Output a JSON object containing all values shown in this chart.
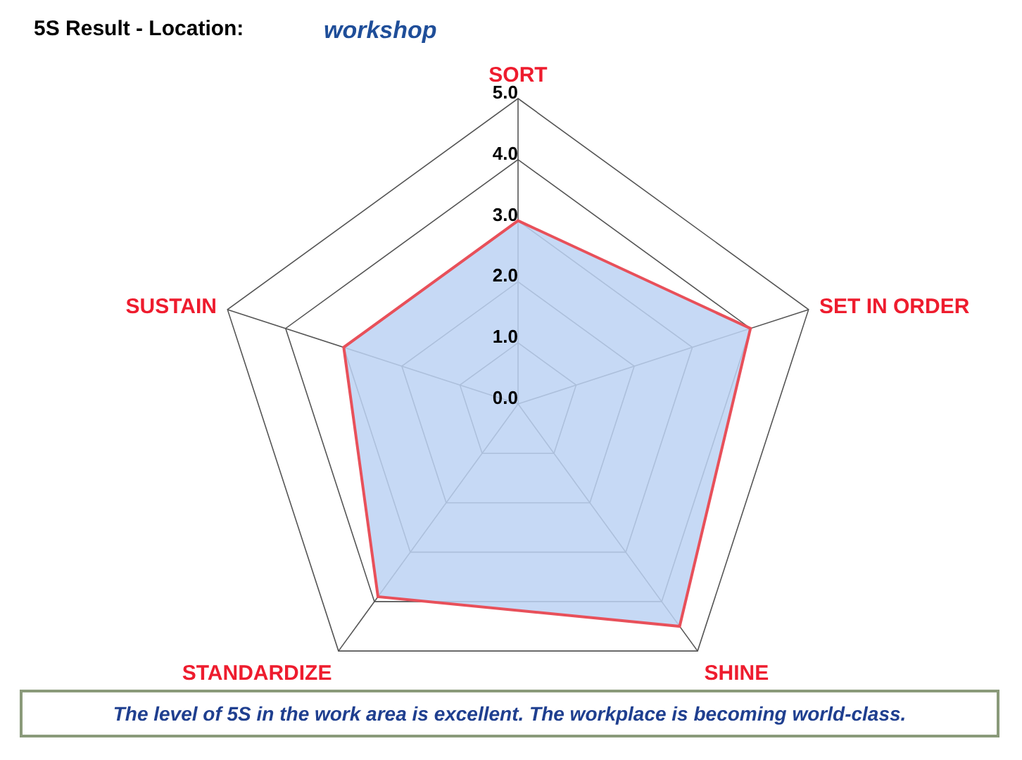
{
  "chart_data": {
    "type": "radar",
    "title": "5S Result - Location:",
    "subtitle": "workshop",
    "categories": [
      "SORT",
      "SET IN ORDER",
      "SHINE",
      "STANDARDIZE",
      "SUSTAIN"
    ],
    "series": [
      {
        "color": "#bcd2f3",
        "values": [
          3.0,
          4.0,
          4.5,
          3.9,
          3.0
        ]
      }
    ],
    "ylim": [
      0,
      5
    ],
    "yticks": [
      {
        "value": 0,
        "label": "0.0"
      },
      {
        "value": 1,
        "label": "1.0"
      },
      {
        "value": 2,
        "label": "2.0"
      },
      {
        "value": 3,
        "label": "3.0"
      },
      {
        "value": 4,
        "label": "4.0"
      },
      {
        "value": 5,
        "label": "5.0"
      }
    ],
    "grid": true,
    "legend": false,
    "annotations": [
      "The level of 5S in the work area is excellent. The workplace is becoming world-class."
    ]
  }
}
